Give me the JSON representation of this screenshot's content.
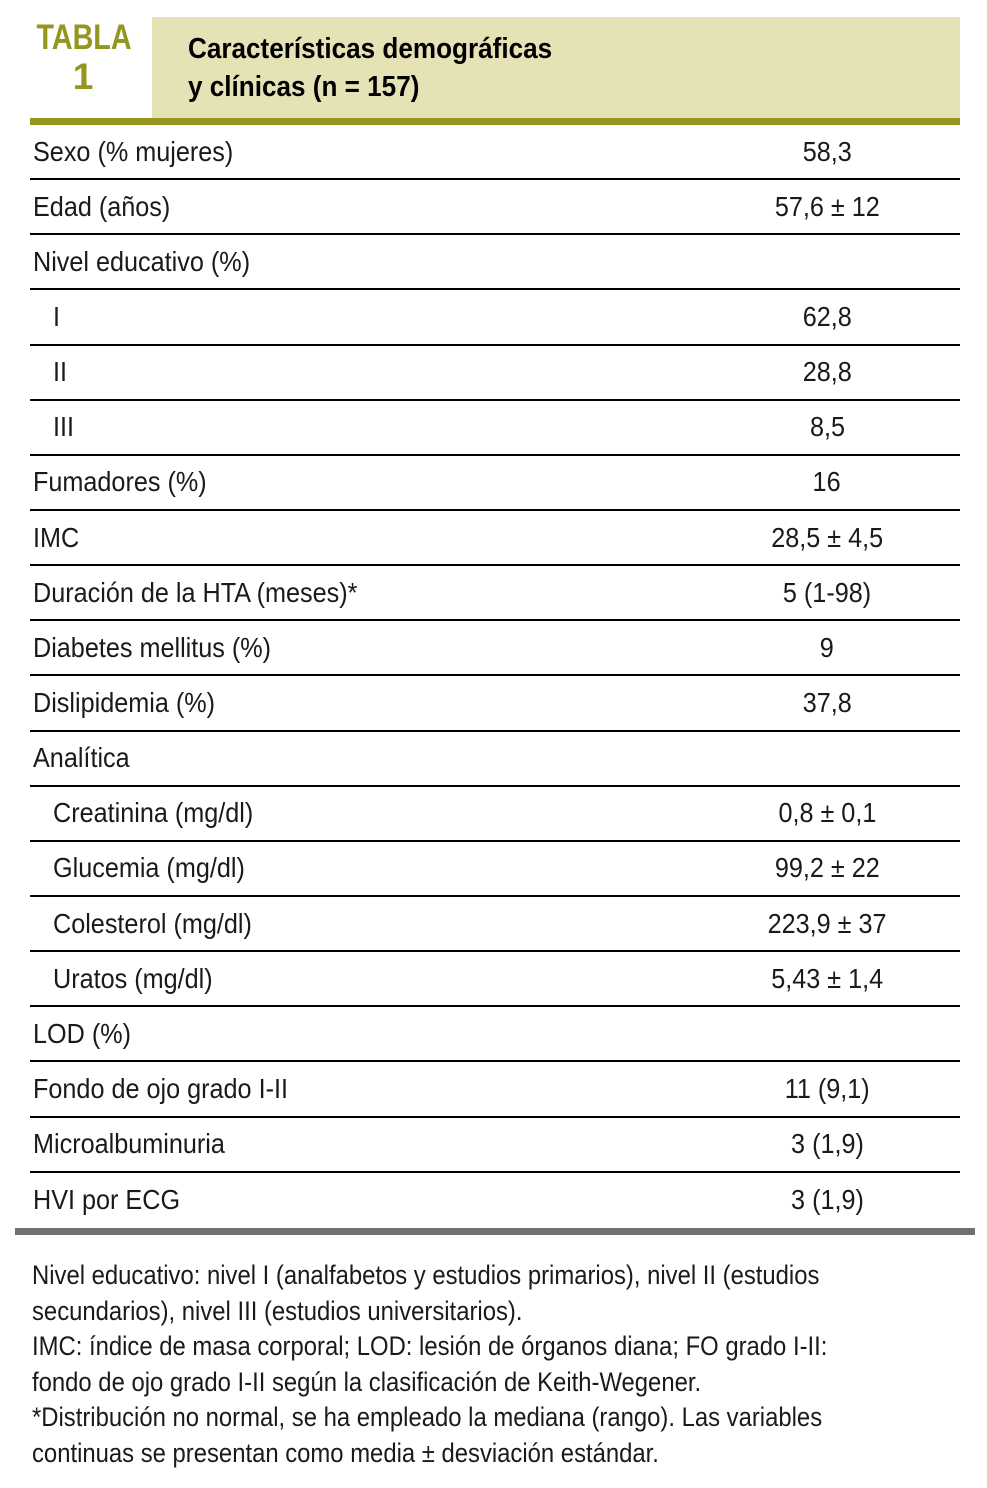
{
  "header": {
    "table_label": "TABLA",
    "table_number": "1",
    "title_line1": "Características demográficas",
    "title_line2": "y clínicas (n = 157)"
  },
  "colors": {
    "olive_accent": "#95961E",
    "title_box_beige": "#E5E2B6",
    "bottom_bar_gray": "#6F6F6F",
    "row_rule_black": "#000000"
  },
  "rows": [
    {
      "label": "Sexo (% mujeres)",
      "value": "58,3",
      "indent": false
    },
    {
      "label": "Edad (años)",
      "value": "57,6 ± 12",
      "indent": false
    },
    {
      "label": "Nivel educativo (%)",
      "value": "",
      "indent": false
    },
    {
      "label": "I",
      "value": "62,8",
      "indent": true
    },
    {
      "label": "II",
      "value": "28,8",
      "indent": true
    },
    {
      "label": "III",
      "value": "8,5",
      "indent": true
    },
    {
      "label": "Fumadores (%)",
      "value": "16",
      "indent": false
    },
    {
      "label": "IMC",
      "value": "28,5 ± 4,5",
      "indent": false
    },
    {
      "label": "Duración de la HTA (meses)*",
      "value": "5 (1-98)",
      "indent": false
    },
    {
      "label": "Diabetes mellitus (%)",
      "value": "9",
      "indent": false
    },
    {
      "label": "Dislipidemia (%)",
      "value": "37,8",
      "indent": false
    },
    {
      "label": "Analítica",
      "value": "",
      "indent": false
    },
    {
      "label": "Creatinina (mg/dl)",
      "value": "0,8 ± 0,1",
      "indent": true
    },
    {
      "label": "Glucemia (mg/dl)",
      "value": "99,2 ± 22",
      "indent": true
    },
    {
      "label": "Colesterol (mg/dl)",
      "value": "223,9 ± 37",
      "indent": true
    },
    {
      "label": "Uratos (mg/dl)",
      "value": "5,43 ± 1,4",
      "indent": true
    },
    {
      "label": "LOD (%)",
      "value": "",
      "indent": false
    },
    {
      "label": "Fondo de ojo grado I-II",
      "value": "11 (9,1)",
      "indent": false
    },
    {
      "label": "Microalbuminuria",
      "value": "3 (1,9)",
      "indent": false
    },
    {
      "label": "HVI por ECG",
      "value": "3 (1,9)",
      "indent": false
    }
  ],
  "footnotes": {
    "lines": [
      "Nivel educativo: nivel I (analfabetos y estudios primarios), nivel II (estudios",
      "secundarios), nivel III (estudios universitarios).",
      "IMC: índice de masa corporal; LOD: lesión de órganos diana; FO grado I-II:",
      "fondo de ojo grado I-II según la clasificación de Keith-Wegener.",
      "*Distribución no normal, se ha empleado la mediana (rango). Las variables",
      "continuas se presentan como media ± desviación estándar."
    ]
  }
}
